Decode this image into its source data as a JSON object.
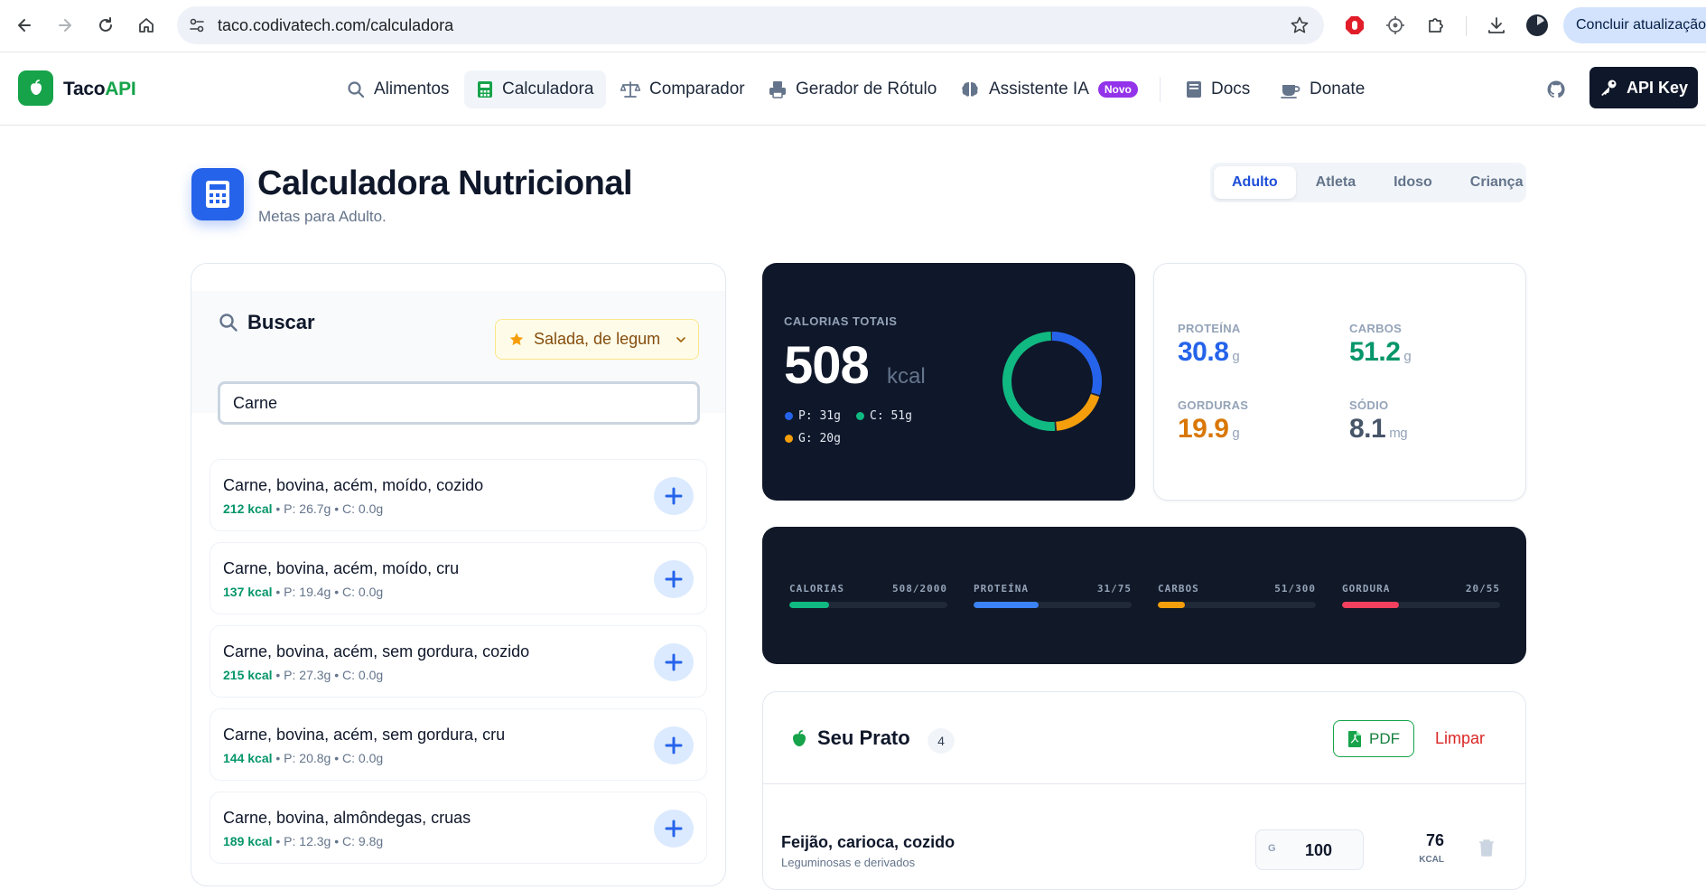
{
  "browser": {
    "url": "taco.codivatech.com/calculadora",
    "update_label": "Concluir atualização"
  },
  "app": {
    "logo": {
      "part1": "Taco",
      "part2": "API"
    },
    "nav": [
      {
        "label": "Alimentos",
        "icon": "search-icon"
      },
      {
        "label": "Calculadora",
        "icon": "calculator-icon",
        "active": true
      },
      {
        "label": "Comparador",
        "icon": "scale-icon"
      },
      {
        "label": "Gerador de Rótulo",
        "icon": "label-printer-icon"
      },
      {
        "label": "Assistente IA",
        "icon": "brain-icon",
        "badge": "Novo"
      },
      {
        "label": "Docs",
        "icon": "book-icon"
      },
      {
        "label": "Donate",
        "icon": "coffee-icon"
      }
    ],
    "api_key_label": "API Key"
  },
  "page": {
    "title": "Calculadora Nutricional",
    "subtitle": "Metas para Adulto.",
    "profiles": [
      "Adulto",
      "Atleta",
      "Idoso",
      "Criança"
    ],
    "active_profile": "Adulto"
  },
  "search": {
    "title": "Buscar",
    "filter_label": "Salada, de legum",
    "query": "Carne",
    "results": [
      {
        "name": "Carne, bovina, acém, moído, cozido",
        "kcal": "212 kcal",
        "meta": " • P: 26.7g • C: 0.0g"
      },
      {
        "name": "Carne, bovina, acém, moído, cru",
        "kcal": "137 kcal",
        "meta": " • P: 19.4g • C: 0.0g"
      },
      {
        "name": "Carne, bovina, acém, sem gordura, cozido",
        "kcal": "215 kcal",
        "meta": " • P: 27.3g • C: 0.0g"
      },
      {
        "name": "Carne, bovina, acém, sem gordura, cru",
        "kcal": "144 kcal",
        "meta": " • P: 20.8g • C: 0.0g"
      },
      {
        "name": "Carne, bovina, almôndegas, cruas",
        "kcal": "189 kcal",
        "meta": " • P: 12.3g • C: 9.8g"
      }
    ]
  },
  "calories": {
    "label": "CALORIAS TOTAIS",
    "value": "508",
    "unit": "kcal",
    "legend": {
      "p": "P: 31g",
      "c": "C: 51g",
      "g": "G: 20g"
    },
    "donut_fractions": {
      "protein": 0.3,
      "fat": 0.19,
      "carbs": 0.51
    },
    "colors": {
      "protein": "#2563eb",
      "fat": "#f59e0b",
      "carbs": "#10b981"
    }
  },
  "macros": {
    "protein": {
      "label": "PROTEÍNA",
      "value": "30.8",
      "unit": "g",
      "color": "#2563eb"
    },
    "carbs": {
      "label": "CARBOS",
      "value": "51.2",
      "unit": "g",
      "color": "#059669"
    },
    "fat": {
      "label": "GORDURAS",
      "value": "19.9",
      "unit": "g",
      "color": "#d97706"
    },
    "sodium": {
      "label": "SÓDIO",
      "value": "8.1",
      "unit": "mg",
      "color": "#475569"
    }
  },
  "goals": [
    {
      "label": "CALORIAS",
      "value": "508/2000",
      "fraction": 0.254,
      "color": "#10b981"
    },
    {
      "label": "PROTEÍNA",
      "value": "31/75",
      "fraction": 0.41,
      "color": "#3b82f6"
    },
    {
      "label": "CARBOS",
      "value": "51/300",
      "fraction": 0.17,
      "color": "#f59e0b"
    },
    {
      "label": "GORDURA",
      "value": "20/55",
      "fraction": 0.36,
      "color": "#f43f5e"
    }
  ],
  "plate": {
    "title": "Seu Prato",
    "count": "4",
    "pdf_label": "PDF",
    "clear_label": "Limpar",
    "items": [
      {
        "name": "Feijão, carioca, cozido",
        "category": "Leguminosas e derivados",
        "grams_label": "G",
        "grams": "100",
        "kcal": "76",
        "kcal_unit": "KCAL"
      }
    ]
  }
}
